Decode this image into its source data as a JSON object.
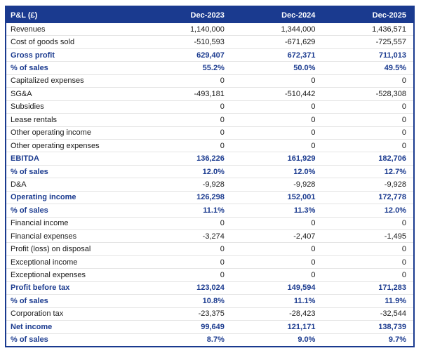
{
  "colors": {
    "header_bg": "#1a3a8f",
    "header_text": "#ffffff",
    "emphasis_text": "#1a3a8f",
    "row_border": "#e4e4e4",
    "body_text": "#1a1a1a"
  },
  "chart_data": {
    "type": "table",
    "title": "P&L (£)",
    "currency": "GBP",
    "columns": [
      "P&L (£)",
      "Dec-2023",
      "Dec-2024",
      "Dec-2025"
    ],
    "rows": [
      {
        "label": "Revenues",
        "values": [
          "1,140,000",
          "1,344,000",
          "1,436,571"
        ],
        "emphasis": false
      },
      {
        "label": "Cost of goods sold",
        "values": [
          "-510,593",
          "-671,629",
          "-725,557"
        ],
        "emphasis": false
      },
      {
        "label": "Gross profit",
        "values": [
          "629,407",
          "672,371",
          "711,013"
        ],
        "emphasis": true
      },
      {
        "label": "% of sales",
        "values": [
          "55.2%",
          "50.0%",
          "49.5%"
        ],
        "emphasis": true
      },
      {
        "label": "Capitalized expenses",
        "values": [
          "0",
          "0",
          "0"
        ],
        "emphasis": false
      },
      {
        "label": "SG&A",
        "values": [
          "-493,181",
          "-510,442",
          "-528,308"
        ],
        "emphasis": false
      },
      {
        "label": "Subsidies",
        "values": [
          "0",
          "0",
          "0"
        ],
        "emphasis": false
      },
      {
        "label": "Lease rentals",
        "values": [
          "0",
          "0",
          "0"
        ],
        "emphasis": false
      },
      {
        "label": "Other operating income",
        "values": [
          "0",
          "0",
          "0"
        ],
        "emphasis": false
      },
      {
        "label": "Other operating expenses",
        "values": [
          "0",
          "0",
          "0"
        ],
        "emphasis": false
      },
      {
        "label": "EBITDA",
        "values": [
          "136,226",
          "161,929",
          "182,706"
        ],
        "emphasis": true
      },
      {
        "label": "% of sales",
        "values": [
          "12.0%",
          "12.0%",
          "12.7%"
        ],
        "emphasis": true
      },
      {
        "label": "D&A",
        "values": [
          "-9,928",
          "-9,928",
          "-9,928"
        ],
        "emphasis": false
      },
      {
        "label": "Operating income",
        "values": [
          "126,298",
          "152,001",
          "172,778"
        ],
        "emphasis": true
      },
      {
        "label": "% of sales",
        "values": [
          "11.1%",
          "11.3%",
          "12.0%"
        ],
        "emphasis": true
      },
      {
        "label": "Financial income",
        "values": [
          "0",
          "0",
          "0"
        ],
        "emphasis": false
      },
      {
        "label": "Financial expenses",
        "values": [
          "-3,274",
          "-2,407",
          "-1,495"
        ],
        "emphasis": false
      },
      {
        "label": "Profit (loss) on disposal",
        "values": [
          "0",
          "0",
          "0"
        ],
        "emphasis": false
      },
      {
        "label": "Exceptional income",
        "values": [
          "0",
          "0",
          "0"
        ],
        "emphasis": false
      },
      {
        "label": "Exceptional expenses",
        "values": [
          "0",
          "0",
          "0"
        ],
        "emphasis": false
      },
      {
        "label": "Profit before tax",
        "values": [
          "123,024",
          "149,594",
          "171,283"
        ],
        "emphasis": true
      },
      {
        "label": "% of sales",
        "values": [
          "10.8%",
          "11.1%",
          "11.9%"
        ],
        "emphasis": true
      },
      {
        "label": "Corporation tax",
        "values": [
          "-23,375",
          "-28,423",
          "-32,544"
        ],
        "emphasis": false
      },
      {
        "label": "Net income",
        "values": [
          "99,649",
          "121,171",
          "138,739"
        ],
        "emphasis": true
      },
      {
        "label": "% of sales",
        "values": [
          "8.7%",
          "9.0%",
          "9.7%"
        ],
        "emphasis": true
      }
    ]
  }
}
